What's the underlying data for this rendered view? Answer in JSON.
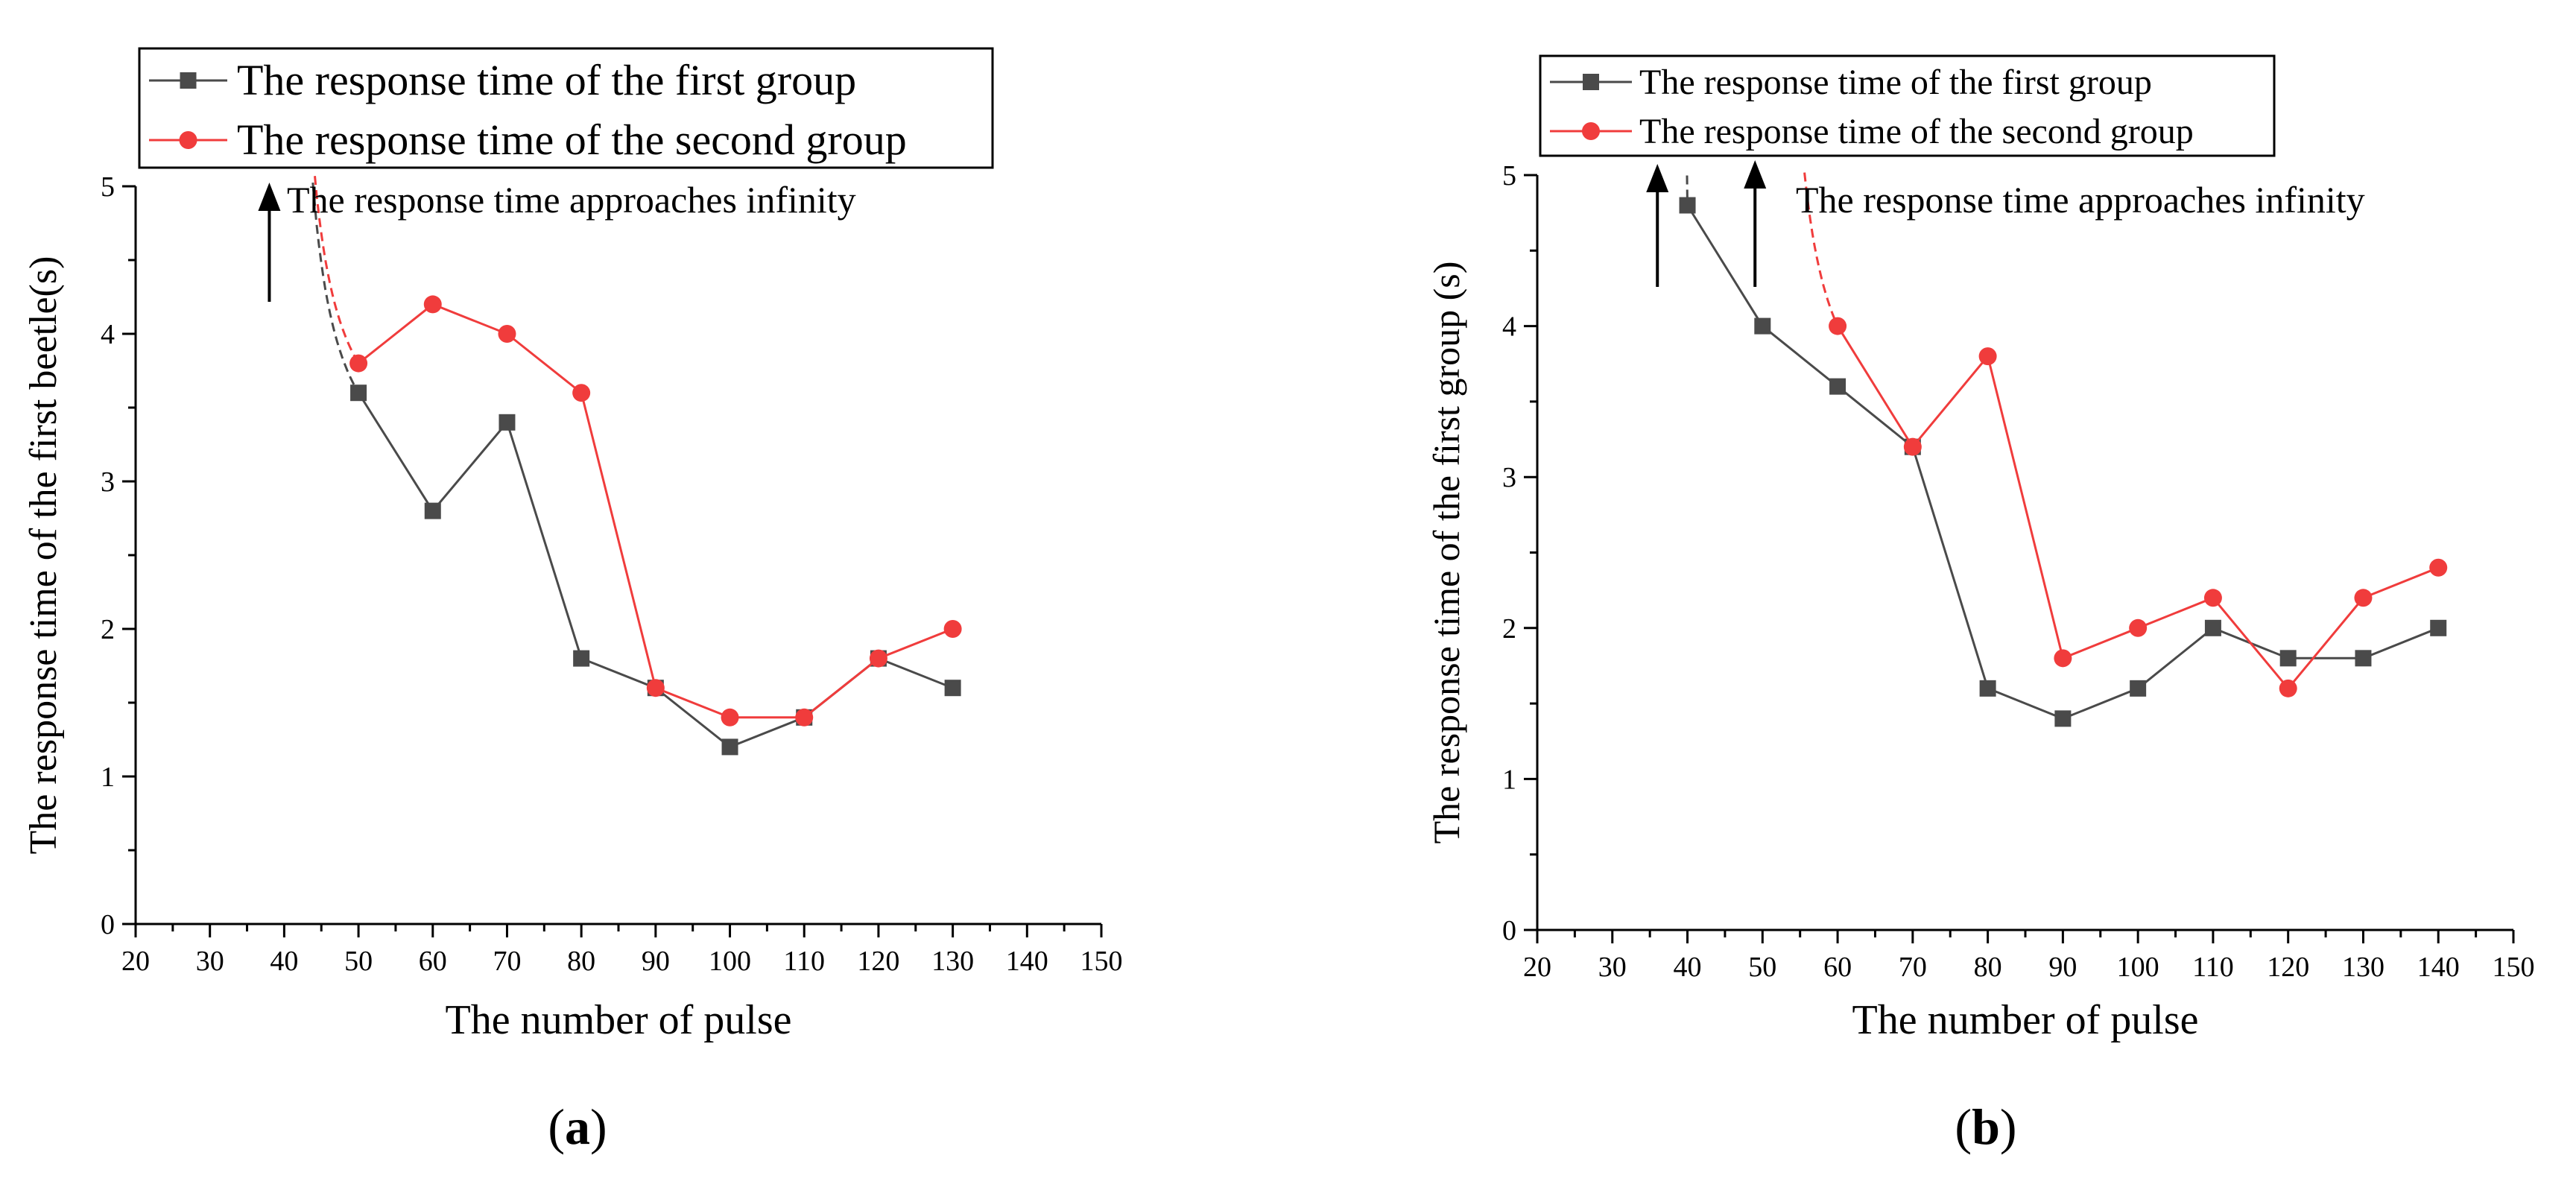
{
  "chart_data": [
    {
      "type": "line",
      "panel_label": "(a)",
      "xlabel": "The number of pulse",
      "ylabel": "The response time of the first beetle(s)",
      "xlim": [
        20,
        150
      ],
      "ylim": [
        0,
        5
      ],
      "x_ticks": [
        20,
        30,
        40,
        50,
        60,
        70,
        80,
        90,
        100,
        110,
        120,
        130,
        140,
        150
      ],
      "y_ticks": [
        0,
        1,
        2,
        3,
        4,
        5
      ],
      "annotation": "The response time approaches infinity",
      "arrow_x": [
        38
      ],
      "series": [
        {
          "name": "The response time of the first group",
          "color": "#4a4a4a",
          "marker": "square",
          "x": [
            50,
            60,
            70,
            80,
            90,
            100,
            110,
            120,
            130
          ],
          "y": [
            3.6,
            2.8,
            3.4,
            1.8,
            1.6,
            1.2,
            1.4,
            1.8,
            1.6
          ],
          "asymptote_x": 40.3
        },
        {
          "name": "The response time of the second group",
          "color": "#f03c3c",
          "marker": "circle",
          "x": [
            50,
            60,
            70,
            80,
            90,
            100,
            110,
            120,
            130
          ],
          "y": [
            3.8,
            4.2,
            4.0,
            3.6,
            1.6,
            1.4,
            1.4,
            1.8,
            2.0
          ],
          "asymptote_x": 40.3
        }
      ]
    },
    {
      "type": "line",
      "panel_label": "(b)",
      "xlabel": "The number of pulse",
      "ylabel": "The response time of the first group (s)",
      "xlim": [
        20,
        150
      ],
      "ylim": [
        0,
        5
      ],
      "x_ticks": [
        20,
        30,
        40,
        50,
        60,
        70,
        80,
        90,
        100,
        110,
        120,
        130,
        140,
        150
      ],
      "y_ticks": [
        0,
        1,
        2,
        3,
        4,
        5
      ],
      "annotation": "The response time approaches infinity",
      "arrow_x": [
        36,
        49
      ],
      "series": [
        {
          "name": "The response time of the first group",
          "color": "#4a4a4a",
          "marker": "square",
          "x": [
            40,
            50,
            60,
            70,
            80,
            90,
            100,
            110,
            120,
            130,
            140
          ],
          "y": [
            4.8,
            4.0,
            3.6,
            3.2,
            1.6,
            1.4,
            1.6,
            2.0,
            1.8,
            1.8,
            2.0
          ],
          "asymptote_x": 38.5
        },
        {
          "name": "The response time of the second group",
          "color": "#f03c3c",
          "marker": "circle",
          "x": [
            60,
            70,
            80,
            90,
            100,
            110,
            120,
            130,
            140
          ],
          "y": [
            4.0,
            3.2,
            3.8,
            1.8,
            2.0,
            2.2,
            1.6,
            2.2,
            2.4
          ],
          "asymptote_x": 51.5
        }
      ]
    }
  ]
}
